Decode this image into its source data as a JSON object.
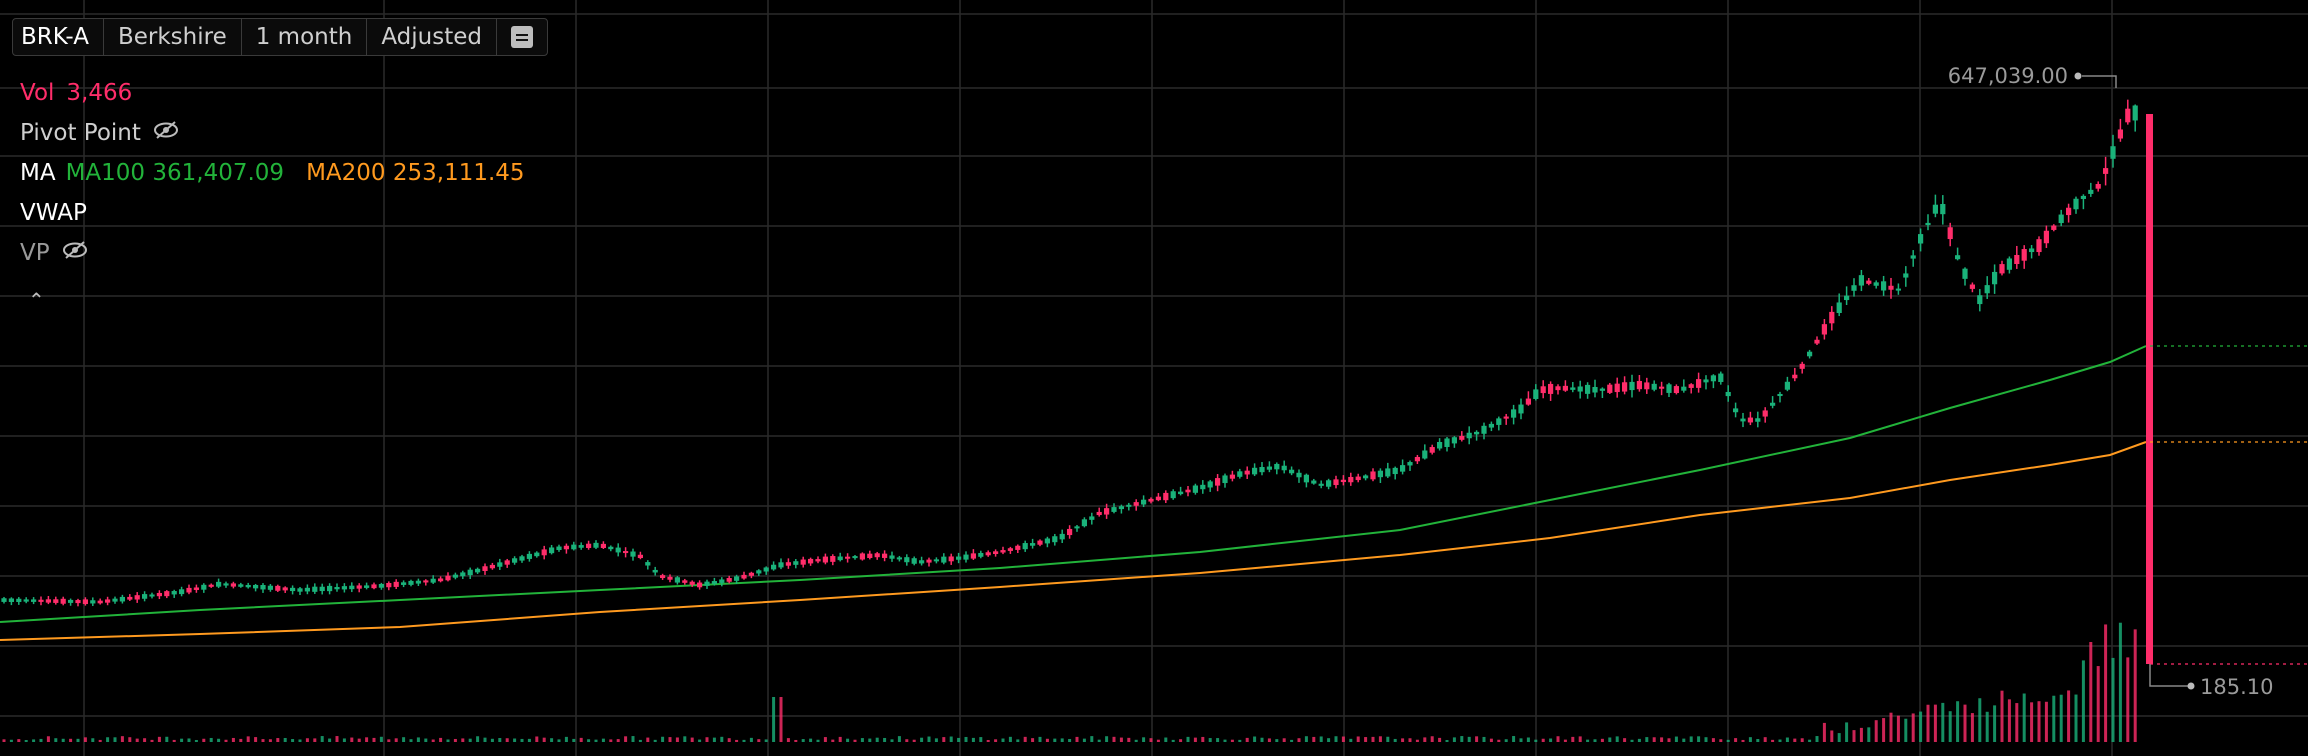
{
  "toolbar": {
    "symbol": "BRK-A",
    "name": "Berkshire",
    "period": "1 month",
    "adjust": "Adjusted",
    "menu_icon": "list-icon"
  },
  "legend": {
    "vol_label": "Vol",
    "vol_value": "3,466",
    "pivot": "Pivot Point",
    "ma": "MA",
    "ma100": "MA100 361,407.09",
    "ma200": "MA200 253,111.45",
    "vwap": "VWAP",
    "vp": "VP",
    "collapse_icon": "chevron-up-icon"
  },
  "colors": {
    "up": "#1ab27a",
    "down": "#ff2d6a",
    "ma100": "#22b33a",
    "ma200": "#ff9a1f",
    "grid": "#2a2a2a",
    "text_muted": "#9a9a9a"
  },
  "price_labels": {
    "high": "647,039.00",
    "last": "185.10"
  },
  "chart_data": {
    "type": "candlestick",
    "title": "",
    "series": [
      {
        "name": "MA100",
        "values": []
      },
      {
        "name": "MA200",
        "values": []
      }
    ],
    "price_high": 647039.0,
    "price_last": 185.1,
    "ma100_last": 361407.09,
    "ma200_last": 253111.45,
    "volume_last": 3466,
    "log_scale": true,
    "grid": true
  }
}
